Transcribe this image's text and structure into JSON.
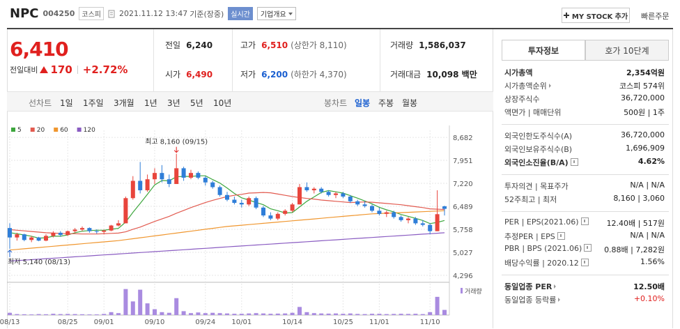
{
  "header": {
    "name": "NPC",
    "code": "004250",
    "market": "코스피",
    "datetime": "2021.11.12 13:47",
    "basis": "기준(장중)",
    "realtime": "실시간",
    "company_info": "기업개요",
    "my_stock": "MY STOCK 추가",
    "quick_order": "빠른주문"
  },
  "quote": {
    "price": "6,410",
    "change_label": "전일대비",
    "change": "170",
    "change_pct": "+2.72%",
    "up_color": "#e0201e",
    "down_color": "#1a5fd0",
    "rows": [
      [
        {
          "label": "전일",
          "value": "6,240"
        },
        {
          "label": "고가",
          "value": "6,510",
          "note": "(상한가 8,110)",
          "color": "#e0201e"
        },
        {
          "label": "거래량",
          "value": "1,586,037"
        }
      ],
      [
        {
          "label": "시가",
          "value": "6,490",
          "color": "#e0201e"
        },
        {
          "label": "저가",
          "value": "6,200",
          "note": "(하한가 4,370)",
          "color": "#1a5fd0"
        },
        {
          "label": "거래대금",
          "value": "10,098 백만"
        }
      ]
    ]
  },
  "tabs": {
    "line_label": "선차트",
    "line_items": [
      "1일",
      "1주일",
      "3개월",
      "1년",
      "3년",
      "5년",
      "10년"
    ],
    "candle_label": "봉차트",
    "candle_items": [
      "일봉",
      "주봉",
      "월봉"
    ],
    "candle_selected": 0
  },
  "investment_info": {
    "tabs": [
      "투자정보",
      "호가 10단계"
    ],
    "selected": 0,
    "groups": [
      [
        {
          "label": "시가총액",
          "value": "2,354억원",
          "bold": true
        },
        {
          "label": "시가총액순위",
          "value": "코스피 574위",
          "arrow": true
        },
        {
          "label": "상장주식수",
          "value": "36,720,000"
        },
        {
          "label": "액면가 | 매매단위",
          "value": "500원 | 1주"
        }
      ],
      [
        {
          "label": "외국인한도주식수(A)",
          "value": "36,720,000"
        },
        {
          "label": "외국인보유주식수(B)",
          "value": "1,696,909"
        },
        {
          "label": "외국인소진율(B/A)",
          "value": "4.62%",
          "bold": true,
          "help": true
        }
      ],
      [
        {
          "label": "투자의견 | 목표주가",
          "value": "N/A | N/A"
        },
        {
          "label": "52주최고 | 최저",
          "value": "8,160 | 3,060"
        }
      ],
      [
        {
          "label": "PER | EPS(2021.06)",
          "value": "12.40배 | 517원",
          "help": true
        },
        {
          "label": "추정PER | EPS",
          "value": "N/A | N/A",
          "help": true
        },
        {
          "label": "PBR | BPS (2021.06)",
          "value": "0.88배 | 7,282원",
          "help": true
        },
        {
          "label": "배당수익률 | 2020.12",
          "value": "1.56%",
          "help": true
        }
      ],
      [
        {
          "label": "동일업종 PER",
          "value": "12.50배",
          "bold": true,
          "arrow": true
        },
        {
          "label": "동일업종 등락률",
          "value": "+0.10%",
          "color": "#e0201e",
          "arrow": true
        }
      ]
    ]
  },
  "chart_data": {
    "type": "candlestick",
    "up_color": "#e8453c",
    "down_color": "#2f7ed8",
    "grid": true,
    "dates": [
      "08/13",
      null,
      null,
      null,
      null,
      null,
      null,
      null,
      "08/25",
      null,
      null,
      null,
      null,
      "09/01",
      null,
      null,
      null,
      null,
      null,
      null,
      "09/10",
      null,
      null,
      null,
      null,
      null,
      null,
      "09/24",
      null,
      null,
      null,
      null,
      "10/01",
      null,
      null,
      null,
      null,
      null,
      null,
      "10/14",
      null,
      null,
      null,
      null,
      null,
      null,
      "10/25",
      null,
      null,
      null,
      null,
      "11/01",
      null,
      null,
      null,
      null,
      null,
      null,
      "11/10",
      null,
      null
    ],
    "candles": [
      [
        5800,
        5950,
        5140,
        5500
      ],
      [
        5500,
        5650,
        5400,
        5600
      ],
      [
        5600,
        5620,
        5380,
        5420
      ],
      [
        5420,
        5550,
        5350,
        5500
      ],
      [
        5500,
        5520,
        5380,
        5400
      ],
      [
        5400,
        5600,
        5380,
        5550
      ],
      [
        5550,
        5700,
        5500,
        5650
      ],
      [
        5650,
        5700,
        5520,
        5580
      ],
      [
        5580,
        5720,
        5550,
        5700
      ],
      [
        5700,
        5800,
        5650,
        5750
      ],
      [
        5750,
        5850,
        5700,
        5800
      ],
      [
        5800,
        5820,
        5650,
        5700
      ],
      [
        5700,
        5760,
        5620,
        5680
      ],
      [
        5680,
        5750,
        5600,
        5720
      ],
      [
        5720,
        5900,
        5700,
        5880
      ],
      [
        5880,
        6050,
        5850,
        5950
      ],
      [
        5950,
        6800,
        5950,
        6750
      ],
      [
        6750,
        7450,
        6700,
        7300
      ],
      [
        7300,
        7900,
        6900,
        7000
      ],
      [
        7000,
        7500,
        6950,
        7350
      ],
      [
        7350,
        7700,
        7200,
        7550
      ],
      [
        7550,
        7800,
        7250,
        7350
      ],
      [
        7350,
        7500,
        7100,
        7200
      ],
      [
        7200,
        8160,
        7200,
        7700
      ],
      [
        7700,
        7750,
        7300,
        7400
      ],
      [
        7400,
        7650,
        7350,
        7550
      ],
      [
        7550,
        7600,
        7350,
        7400
      ],
      [
        7400,
        7450,
        7150,
        7250
      ],
      [
        7250,
        7300,
        7050,
        7100
      ],
      [
        7100,
        7150,
        6800,
        6850
      ],
      [
        6850,
        6950,
        6650,
        6700
      ],
      [
        6700,
        6800,
        6550,
        6600
      ],
      [
        6600,
        6700,
        6450,
        6550
      ],
      [
        6550,
        6800,
        6500,
        6750
      ],
      [
        6750,
        6800,
        6400,
        6450
      ],
      [
        6450,
        6500,
        6150,
        6200
      ],
      [
        6200,
        6300,
        6050,
        6100
      ],
      [
        6100,
        6300,
        6050,
        6250
      ],
      [
        6250,
        6400,
        6200,
        6350
      ],
      [
        6350,
        6600,
        6300,
        6550
      ],
      [
        6550,
        7200,
        6550,
        7100
      ],
      [
        7100,
        7250,
        6950,
        7000
      ],
      [
        7000,
        7100,
        6900,
        7050
      ],
      [
        7050,
        7100,
        6900,
        6950
      ],
      [
        6950,
        7000,
        6800,
        6850
      ],
      [
        6850,
        6950,
        6750,
        6900
      ],
      [
        6900,
        6950,
        6750,
        6800
      ],
      [
        6800,
        6850,
        6600,
        6650
      ],
      [
        6650,
        6700,
        6500,
        6550
      ],
      [
        6550,
        6650,
        6450,
        6500
      ],
      [
        6500,
        6550,
        6300,
        6350
      ],
      [
        6350,
        6450,
        6200,
        6250
      ],
      [
        6250,
        6350,
        6150,
        6300
      ],
      [
        6300,
        6350,
        6100,
        6150
      ],
      [
        6150,
        6200,
        6000,
        6050
      ],
      [
        6050,
        6150,
        5950,
        6100
      ],
      [
        6100,
        6150,
        5900,
        5950
      ],
      [
        5950,
        6050,
        5850,
        5900
      ],
      [
        5900,
        5950,
        5600,
        5700
      ],
      [
        5700,
        7000,
        5700,
        6240
      ],
      [
        6490,
        6510,
        6200,
        6410
      ]
    ],
    "series": [
      {
        "name": "5",
        "color": "#3da63d",
        "values": [
          5650,
          5620,
          5580,
          5540,
          5480,
          5490,
          5540,
          5540,
          5580,
          5650,
          5700,
          5720,
          5730,
          5730,
          5760,
          5790,
          5990,
          6300,
          6580,
          6870,
          7170,
          7310,
          7300,
          7430,
          7440,
          7440,
          7460,
          7460,
          7340,
          7230,
          7070,
          6900,
          6760,
          6690,
          6610,
          6540,
          6410,
          6350,
          6280,
          6290,
          6470,
          6650,
          6790,
          6930,
          6990,
          6950,
          6910,
          6830,
          6750,
          6660,
          6570,
          6460,
          6380,
          6310,
          6230,
          6170,
          6110,
          6040,
          5940,
          5980,
          6040
        ]
      },
      {
        "name": "20",
        "color": "#e25a4f",
        "values": [
          5750,
          5730,
          5710,
          5690,
          5670,
          5650,
          5640,
          5630,
          5620,
          5620,
          5610,
          5610,
          5610,
          5620,
          5630,
          5640,
          5680,
          5760,
          5830,
          5920,
          6010,
          6090,
          6170,
          6270,
          6360,
          6450,
          6530,
          6610,
          6680,
          6740,
          6800,
          6840,
          6870,
          6910,
          6920,
          6930,
          6920,
          6880,
          6840,
          6800,
          6770,
          6740,
          6720,
          6690,
          6670,
          6650,
          6630,
          6610,
          6620,
          6630,
          6620,
          6600,
          6580,
          6560,
          6540,
          6510,
          6480,
          6450,
          6410,
          6400,
          6390
        ]
      },
      {
        "name": "60",
        "color": "#f0962e",
        "values": [
          5100,
          5120,
          5140,
          5160,
          5180,
          5200,
          5220,
          5240,
          5260,
          5280,
          5300,
          5320,
          5340,
          5360,
          5380,
          5400,
          5430,
          5460,
          5490,
          5520,
          5550,
          5580,
          5610,
          5640,
          5670,
          5700,
          5730,
          5760,
          5790,
          5820,
          5850,
          5870,
          5890,
          5910,
          5930,
          5950,
          5970,
          5990,
          6010,
          6030,
          6050,
          6070,
          6090,
          6110,
          6130,
          6150,
          6170,
          6190,
          6210,
          6230,
          6250,
          6260,
          6270,
          6280,
          6290,
          6300,
          6310,
          6320,
          6330,
          6340,
          6350
        ]
      },
      {
        "name": "120",
        "color": "#8a5cc2",
        "values": [
          4750,
          4765,
          4780,
          4795,
          4810,
          4825,
          4840,
          4855,
          4870,
          4885,
          4900,
          4915,
          4930,
          4945,
          4960,
          4975,
          4990,
          5005,
          5020,
          5035,
          5050,
          5065,
          5080,
          5095,
          5110,
          5125,
          5140,
          5155,
          5170,
          5185,
          5200,
          5215,
          5230,
          5245,
          5260,
          5275,
          5290,
          5305,
          5320,
          5335,
          5350,
          5365,
          5380,
          5395,
          5410,
          5425,
          5440,
          5455,
          5470,
          5485,
          5500,
          5515,
          5530,
          5545,
          5560,
          5575,
          5590,
          5605,
          5620,
          5635,
          5650
        ]
      }
    ],
    "ylim": [
      4075,
      8905
    ],
    "yticks": [
      {
        "value": 8682,
        "label": "8,682"
      },
      {
        "value": 7951,
        "label": "7,951"
      },
      {
        "value": 7220,
        "label": "7,220"
      },
      {
        "value": 6489,
        "label": "6,489"
      },
      {
        "value": 5758,
        "label": "5,758"
      },
      {
        "value": 5027,
        "label": "5,027"
      },
      {
        "value": 4296,
        "label": "4,296"
      }
    ],
    "volume": {
      "name": "거래량",
      "color": "#a98be0",
      "ylim": [
        0,
        9000000
      ],
      "values": [
        700000,
        300000,
        250000,
        200000,
        300000,
        250000,
        400000,
        300000,
        350000,
        300000,
        250000,
        200000,
        200000,
        350000,
        900000,
        600000,
        8000000,
        4200000,
        7800000,
        3600000,
        1800000,
        900000,
        700000,
        5200000,
        1200000,
        600000,
        800000,
        600000,
        700000,
        600000,
        500000,
        400000,
        400000,
        500000,
        600000,
        500000,
        400000,
        450000,
        500000,
        700000,
        2500000,
        900000,
        600000,
        500000,
        450000,
        500000,
        400000,
        500000,
        350000,
        300000,
        400000,
        400000,
        300000,
        350000,
        400000,
        350000,
        400000,
        300000,
        900000,
        5600000,
        1586037
      ]
    },
    "annotations": {
      "high": "최고 8,160 (09/15)",
      "low": "최저 5,140 (08/13)"
    }
  }
}
